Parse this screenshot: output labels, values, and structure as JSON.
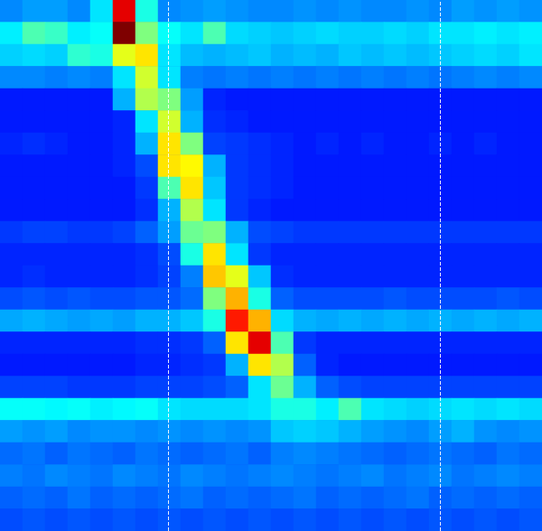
{
  "chart_data": {
    "type": "heatmap",
    "cells": [
      [
        2.6,
        2.8,
        2.8,
        2.6,
        3.5,
        9,
        4,
        2.6,
        2.7,
        2.8,
        2.7,
        2.6,
        2.6,
        2.7,
        2.6,
        2.7,
        2.6,
        2.6,
        2.7,
        2.6,
        2.8,
        2.7,
        2.8,
        2.7
      ],
      [
        3.6,
        4.5,
        4.3,
        3.6,
        3.8,
        10,
        5,
        3.8,
        3.5,
        4.5,
        3.4,
        3.3,
        3.2,
        3.3,
        3.4,
        3.3,
        3.3,
        3.4,
        3.3,
        3.5,
        3.5,
        3.6,
        3.5,
        3.6
      ],
      [
        3.3,
        3.4,
        3.3,
        4.2,
        4,
        6,
        6.5,
        3.5,
        3.1,
        3,
        3.1,
        3.2,
        3,
        3.1,
        3,
        3.2,
        3.1,
        3.2,
        3.1,
        3.2,
        3.3,
        3.4,
        3.3,
        3.5
      ],
      [
        2.6,
        2.6,
        2.5,
        2.6,
        2.5,
        3.5,
        5.8,
        3.5,
        2.5,
        2.4,
        2.5,
        2.4,
        2.5,
        2.4,
        2.5,
        2.4,
        2.5,
        2.4,
        2.5,
        2.4,
        2.5,
        2.6,
        2.5,
        2.6
      ],
      [
        1.5,
        1.5,
        1.5,
        1.5,
        1.5,
        3,
        5.5,
        5,
        2.8,
        1.6,
        1.5,
        1.5,
        1.5,
        1.5,
        1.5,
        1.5,
        1.5,
        1.5,
        1.5,
        1.5,
        1.5,
        1.5,
        1.5,
        1.5
      ],
      [
        1.5,
        1.5,
        1.5,
        1.5,
        1.5,
        1.6,
        3.5,
        5.8,
        3,
        1.7,
        1.6,
        1.5,
        1.5,
        1.5,
        1.5,
        1.5,
        1.5,
        1.5,
        1.5,
        1.5,
        1.5,
        1.5,
        1.5,
        1.5
      ],
      [
        1.6,
        1.7,
        1.6,
        1.5,
        1.5,
        1.6,
        3,
        6.5,
        5,
        1.9,
        1.8,
        1.7,
        1.6,
        1.5,
        1.6,
        1.5,
        1.6,
        1.5,
        1.5,
        1.6,
        1.5,
        1.6,
        1.5,
        1.5
      ],
      [
        1.5,
        1.5,
        1.5,
        1.5,
        1.5,
        1.6,
        2,
        6.5,
        6.3,
        3,
        1.8,
        1.7,
        1.6,
        1.5,
        1.5,
        1.5,
        1.5,
        1.5,
        1.5,
        1.5,
        1.5,
        1.5,
        1.5,
        1.5
      ],
      [
        1.5,
        1.5,
        1.5,
        1.5,
        1.5,
        1.5,
        1.8,
        4.5,
        6.5,
        3.2,
        1.8,
        1.7,
        1.6,
        1.5,
        1.5,
        1.5,
        1.5,
        1.5,
        1.5,
        1.5,
        1.5,
        1.5,
        1.5,
        1.5
      ],
      [
        1.5,
        1.5,
        1.5,
        1.5,
        1.5,
        1.5,
        1.7,
        3,
        5.5,
        3.5,
        1.8,
        1.6,
        1.5,
        1.5,
        1.5,
        1.5,
        1.5,
        1.5,
        1.5,
        1.5,
        1.5,
        1.5,
        1.5,
        1.5
      ],
      [
        1.8,
        1.9,
        1.9,
        1.8,
        1.8,
        1.9,
        2.2,
        2.8,
        4.8,
        5,
        3,
        2,
        1.9,
        1.8,
        1.8,
        1.8,
        1.8,
        1.8,
        1.8,
        1.8,
        1.8,
        1.8,
        1.8,
        1.8
      ],
      [
        1.6,
        1.6,
        1.6,
        1.6,
        1.6,
        1.6,
        1.7,
        2,
        4,
        6.5,
        3.5,
        1.8,
        1.6,
        1.6,
        1.6,
        1.6,
        1.6,
        1.6,
        1.6,
        1.6,
        1.6,
        1.6,
        1.6,
        1.6
      ],
      [
        1.6,
        1.7,
        1.6,
        1.6,
        1.6,
        1.6,
        1.7,
        1.9,
        2.5,
        6.8,
        6,
        3.2,
        1.7,
        1.6,
        1.6,
        1.6,
        1.6,
        1.6,
        1.6,
        1.6,
        1.6,
        1.6,
        1.6,
        1.6
      ],
      [
        2,
        2.1,
        2,
        2.1,
        2,
        2,
        2.1,
        2.1,
        2.3,
        5,
        7,
        4,
        2.2,
        2,
        2,
        2,
        2,
        2.1,
        2,
        2,
        2,
        2,
        2.1,
        2
      ],
      [
        2.9,
        3,
        2.9,
        2.8,
        2.9,
        2.8,
        3,
        3,
        3.2,
        4,
        8.5,
        7,
        3.4,
        3,
        2.9,
        3,
        2.9,
        3,
        2.9,
        3,
        2.9,
        3,
        2.9,
        3
      ],
      [
        1.6,
        1.6,
        1.6,
        1.6,
        1.6,
        1.6,
        1.7,
        1.7,
        1.8,
        2.2,
        6.5,
        9,
        4.5,
        1.8,
        1.6,
        1.6,
        1.6,
        1.6,
        1.6,
        1.6,
        1.6,
        1.6,
        1.6,
        1.6
      ],
      [
        1.5,
        1.5,
        1.5,
        1.5,
        1.5,
        1.5,
        1.6,
        1.6,
        1.7,
        1.8,
        3,
        6.5,
        5.5,
        2.2,
        1.6,
        1.5,
        1.5,
        1.5,
        1.5,
        1.5,
        1.5,
        1.5,
        1.5,
        1.5
      ],
      [
        1.9,
        1.9,
        1.9,
        1.8,
        1.8,
        1.8,
        1.9,
        1.9,
        1.9,
        2,
        2.2,
        3.5,
        4.8,
        3,
        2.2,
        2,
        1.9,
        1.9,
        1.9,
        1.9,
        1.9,
        1.9,
        1.9,
        1.9
      ],
      [
        3.8,
        3.8,
        3.7,
        3.8,
        3.6,
        3.7,
        3.8,
        3.5,
        3.4,
        3.4,
        3.4,
        3.5,
        4,
        4,
        3.6,
        4.5,
        3.5,
        3.4,
        3.3,
        3.4,
        3.5,
        3.4,
        3.5,
        3.4
      ],
      [
        2.8,
        2.7,
        2.8,
        2.6,
        2.7,
        2.7,
        2.6,
        2.7,
        2.6,
        2.7,
        2.6,
        2.7,
        3.2,
        3.3,
        3.2,
        3,
        2.8,
        2.7,
        2.6,
        2.8,
        3,
        2.7,
        2.6,
        2.7
      ],
      [
        2.3,
        2.4,
        2.2,
        2.4,
        2.3,
        2.2,
        2.4,
        2.3,
        2.2,
        2.3,
        2.4,
        2.2,
        2.5,
        2.6,
        2.5,
        2.4,
        2.3,
        2.2,
        2.3,
        2.4,
        2.3,
        2.2,
        2.4,
        2.3
      ],
      [
        2.5,
        2.4,
        2.6,
        2.5,
        2.4,
        2.6,
        2.5,
        2.4,
        2.6,
        2.5,
        2.4,
        2.5,
        2.6,
        2.5,
        2.4,
        2.5,
        2.6,
        2.4,
        2.5,
        2.6,
        2.4,
        2.5,
        2.6,
        2.5
      ],
      [
        2.2,
        2.3,
        2.2,
        2.4,
        2.2,
        2.3,
        2.2,
        2.3,
        2.4,
        2.2,
        2.3,
        2.2,
        2.3,
        2.4,
        2.2,
        2.3,
        2.2,
        2.3,
        2.4,
        2.2,
        2.3,
        2.2,
        2.3,
        2.2
      ],
      [
        2,
        2.1,
        2,
        2.1,
        2,
        2.1,
        2,
        2.1,
        2,
        2.1,
        2,
        2.1,
        2,
        2.1,
        2,
        2.1,
        2,
        2.1,
        2,
        2.1,
        2,
        2.1,
        2,
        2.1
      ]
    ],
    "value_range": [
      0,
      10
    ],
    "vlines": [
      7.44,
      19.48
    ],
    "line_style": "dashed",
    "tick_labels": false,
    "grid": false
  }
}
